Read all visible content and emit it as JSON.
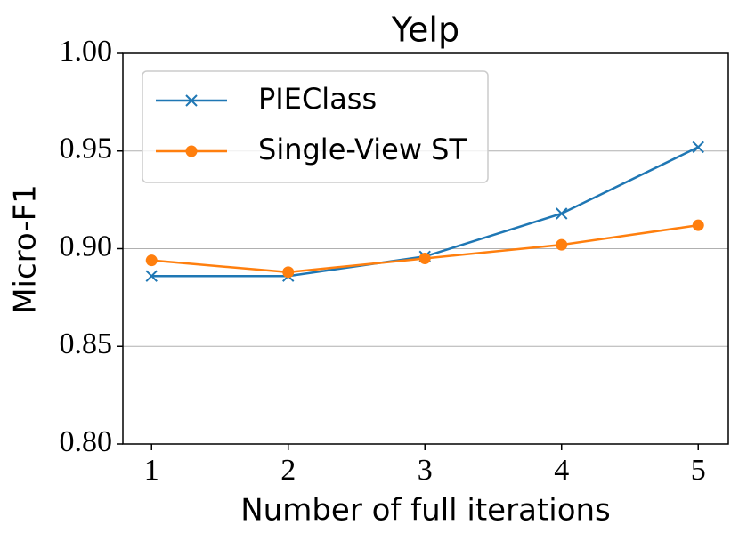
{
  "chart_data": {
    "type": "line",
    "title": "Yelp",
    "x_label": "Number of full iterations",
    "y_label": "Micro-F1",
    "x": [
      1,
      2,
      3,
      4,
      5
    ],
    "series": [
      {
        "name": "PIEClass",
        "color": "#1f77b4",
        "marker": "x",
        "values": [
          0.886,
          0.886,
          0.896,
          0.918,
          0.952
        ]
      },
      {
        "name": "Single-View ST",
        "color": "#ff7f0e",
        "marker": "circle",
        "values": [
          0.894,
          0.888,
          0.895,
          0.902,
          0.912
        ]
      }
    ],
    "xlim": [
      0.79,
      5.22
    ],
    "xticks": [
      1,
      2,
      3,
      4,
      5
    ],
    "ylim": [
      0.8,
      1.0
    ],
    "yticks": [
      {
        "value": 0.8,
        "label": "0.80"
      },
      {
        "value": 0.85,
        "label": "0.85"
      },
      {
        "value": 0.9,
        "label": "0.90"
      },
      {
        "value": 0.95,
        "label": "0.95"
      },
      {
        "value": 1.0,
        "label": "1.00"
      }
    ],
    "grid": "y",
    "legend": "upper left"
  }
}
